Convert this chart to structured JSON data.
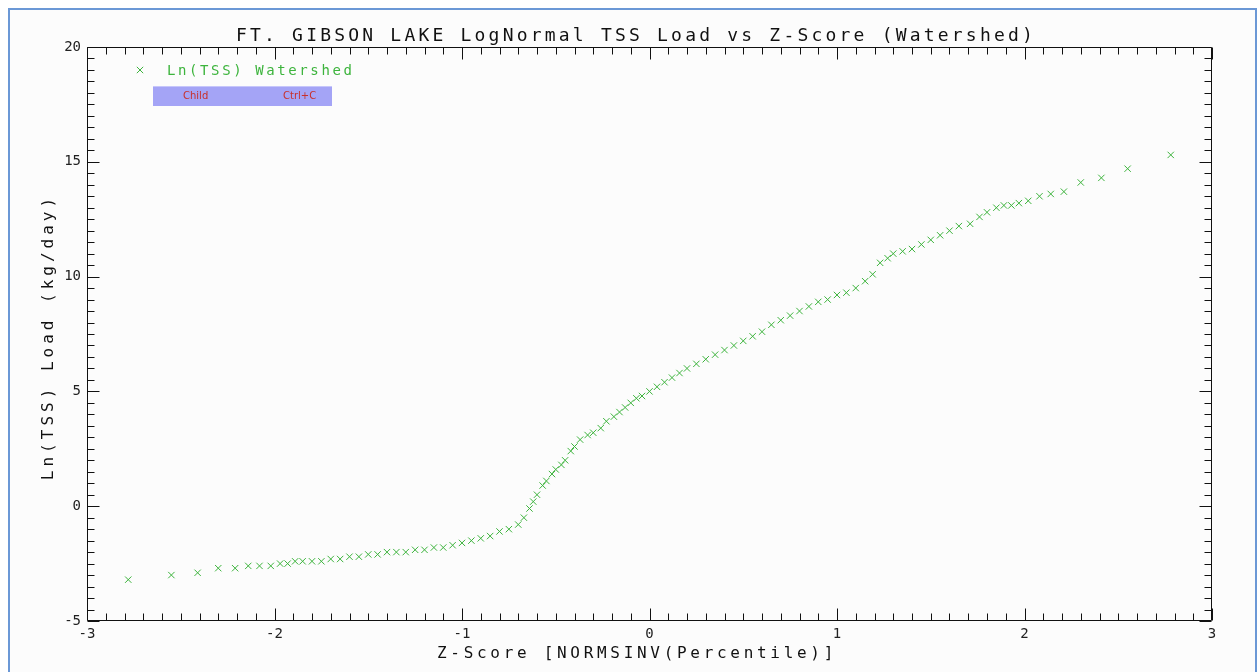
{
  "chart_data": {
    "type": "scatter",
    "title": "FT. GIBSON LAKE LogNormal TSS Load vs Z-Score (Watershed)",
    "xlabel": "Z-Score [NORMSINV(Percentile)]",
    "ylabel": "Ln(TSS) Load (kg/day)",
    "annotations": [
      "Child",
      "Ctrl+C"
    ],
    "x": [
      -2.78,
      -2.55,
      -2.41,
      -2.3,
      -2.21,
      -2.14,
      -2.08,
      -2.02,
      -1.97,
      -1.93,
      -1.89,
      -1.85,
      -1.8,
      -1.75,
      -1.7,
      -1.65,
      -1.6,
      -1.55,
      -1.5,
      -1.45,
      -1.4,
      -1.35,
      -1.3,
      -1.25,
      -1.2,
      -1.15,
      -1.1,
      -1.05,
      -1,
      -0.95,
      -0.9,
      -0.85,
      -0.8,
      -0.75,
      -0.7,
      -0.67,
      -0.64,
      -0.62,
      -0.6,
      -0.57,
      -0.55,
      -0.52,
      -0.5,
      -0.47,
      -0.45,
      -0.42,
      -0.4,
      -0.37,
      -0.33,
      -0.3,
      -0.26,
      -0.23,
      -0.19,
      -0.16,
      -0.13,
      -0.1,
      -0.07,
      -0.04,
      0,
      0.04,
      0.08,
      0.12,
      0.16,
      0.2,
      0.25,
      0.3,
      0.35,
      0.4,
      0.45,
      0.5,
      0.55,
      0.6,
      0.65,
      0.7,
      0.75,
      0.8,
      0.85,
      0.9,
      0.95,
      1,
      1.05,
      1.1,
      1.15,
      1.19,
      1.23,
      1.27,
      1.3,
      1.35,
      1.4,
      1.45,
      1.5,
      1.55,
      1.6,
      1.65,
      1.71,
      1.76,
      1.8,
      1.85,
      1.89,
      1.93,
      1.97,
      2.02,
      2.08,
      2.14,
      2.21,
      2.3,
      2.41,
      2.55,
      2.78
    ],
    "series": [
      {
        "name": "Ln(TSS) Watershed",
        "color": "#3db43d",
        "values": [
          -3.2,
          -3,
          -2.9,
          -2.7,
          -2.7,
          -2.6,
          -2.6,
          -2.6,
          -2.5,
          -2.5,
          -2.4,
          -2.4,
          -2.4,
          -2.4,
          -2.3,
          -2.3,
          -2.2,
          -2.2,
          -2.1,
          -2.1,
          -2,
          -2,
          -2,
          -1.9,
          -1.9,
          -1.8,
          -1.8,
          -1.7,
          -1.6,
          -1.5,
          -1.4,
          -1.3,
          -1.1,
          -1,
          -0.8,
          -0.5,
          -0.1,
          0.2,
          0.5,
          0.9,
          1.1,
          1.4,
          1.6,
          1.8,
          2,
          2.4,
          2.6,
          2.9,
          3.1,
          3.2,
          3.4,
          3.7,
          3.9,
          4.1,
          4.3,
          4.5,
          4.7,
          4.8,
          5,
          5.2,
          5.4,
          5.6,
          5.8,
          6,
          6.2,
          6.4,
          6.6,
          6.8,
          7,
          7.2,
          7.4,
          7.6,
          7.9,
          8.1,
          8.3,
          8.5,
          8.7,
          8.9,
          9,
          9.2,
          9.3,
          9.5,
          9.8,
          10.1,
          10.6,
          10.8,
          11,
          11.1,
          11.2,
          11.4,
          11.6,
          11.8,
          12,
          12.2,
          12.3,
          12.6,
          12.8,
          13,
          13.1,
          13.1,
          13.2,
          13.3,
          13.5,
          13.6,
          13.7,
          14.1,
          14.3,
          14.7,
          15.3
        ]
      }
    ],
    "xlim": [
      -3,
      3
    ],
    "ylim": [
      -5,
      20
    ],
    "xticks": [
      -3,
      {
        "value": -2.9,
        "label": null
      },
      {
        "value": -2.8,
        "label": null
      },
      {
        "value": -2.7,
        "label": null
      },
      {
        "value": -2.6,
        "label": null
      },
      {
        "value": -2.5,
        "label": null
      },
      {
        "value": -2.4,
        "label": null
      },
      {
        "value": -2.3,
        "label": null
      },
      {
        "value": -2.2,
        "label": null
      },
      {
        "value": -2.1,
        "label": null
      },
      -2,
      {
        "value": -1.9,
        "label": null
      },
      {
        "value": -1.8,
        "label": null
      },
      {
        "value": -1.7,
        "label": null
      },
      {
        "value": -1.6,
        "label": null
      },
      {
        "value": -1.5,
        "label": null
      },
      {
        "value": -1.4,
        "label": null
      },
      {
        "value": -1.3,
        "label": null
      },
      {
        "value": -1.2,
        "label": null
      },
      {
        "value": -1.1,
        "label": null
      },
      -1,
      {
        "value": -0.9,
        "label": null
      },
      {
        "value": -0.8,
        "label": null
      },
      {
        "value": -0.7,
        "label": null
      },
      {
        "value": -0.6,
        "label": null
      },
      {
        "value": -0.5,
        "label": null
      },
      {
        "value": -0.4,
        "label": null
      },
      {
        "value": -0.3,
        "label": null
      },
      {
        "value": -0.2,
        "label": null
      },
      {
        "value": -0.1,
        "label": null
      },
      0,
      {
        "value": 0.1,
        "label": null
      },
      {
        "value": 0.2,
        "label": null
      },
      {
        "value": 0.3,
        "label": null
      },
      {
        "value": 0.4,
        "label": null
      },
      {
        "value": 0.5,
        "label": null
      },
      {
        "value": 0.6,
        "label": null
      },
      {
        "value": 0.7,
        "label": null
      },
      {
        "value": 0.8,
        "label": null
      },
      {
        "value": 0.9,
        "label": null
      },
      1,
      {
        "value": 1.1,
        "label": null
      },
      {
        "value": 1.2,
        "label": null
      },
      {
        "value": 1.3,
        "label": null
      },
      {
        "value": 1.4,
        "label": null
      },
      {
        "value": 1.5,
        "label": null
      },
      {
        "value": 1.6,
        "label": null
      },
      {
        "value": 1.7,
        "label": null
      },
      {
        "value": 1.8,
        "label": null
      },
      {
        "value": 1.9,
        "label": null
      },
      2,
      {
        "value": 2.1,
        "label": null
      },
      {
        "value": 2.2,
        "label": null
      },
      {
        "value": 2.3,
        "label": null
      },
      {
        "value": 2.4,
        "label": null
      },
      {
        "value": 2.5,
        "label": null
      },
      {
        "value": 2.6,
        "label": null
      },
      {
        "value": 2.7,
        "label": null
      },
      {
        "value": 2.8,
        "label": null
      },
      {
        "value": 2.9,
        "label": null
      },
      3
    ],
    "yticks": [
      -5,
      {
        "value": -4.5,
        "label": null
      },
      {
        "value": -4,
        "label": null
      },
      {
        "value": -3.5,
        "label": null
      },
      {
        "value": -3,
        "label": null
      },
      {
        "value": -2.5,
        "label": null
      },
      {
        "value": -2,
        "label": null
      },
      {
        "value": -1.5,
        "label": null
      },
      {
        "value": -1,
        "label": null
      },
      {
        "value": -0.5,
        "label": null
      },
      0,
      {
        "value": 0.5,
        "label": null
      },
      {
        "value": 1,
        "label": null
      },
      {
        "value": 1.5,
        "label": null
      },
      {
        "value": 2,
        "label": null
      },
      {
        "value": 2.5,
        "label": null
      },
      {
        "value": 3,
        "label": null
      },
      {
        "value": 3.5,
        "label": null
      },
      {
        "value": 4,
        "label": null
      },
      {
        "value": 4.5,
        "label": null
      },
      5,
      {
        "value": 5.5,
        "label": null
      },
      {
        "value": 6,
        "label": null
      },
      {
        "value": 6.5,
        "label": null
      },
      {
        "value": 7,
        "label": null
      },
      {
        "value": 7.5,
        "label": null
      },
      {
        "value": 8,
        "label": null
      },
      {
        "value": 8.5,
        "label": null
      },
      {
        "value": 9,
        "label": null
      },
      {
        "value": 9.5,
        "label": null
      },
      10,
      {
        "value": 10.5,
        "label": null
      },
      {
        "value": 11,
        "label": null
      },
      {
        "value": 11.5,
        "label": null
      },
      {
        "value": 12,
        "label": null
      },
      {
        "value": 12.5,
        "label": null
      },
      {
        "value": 13,
        "label": null
      },
      {
        "value": 13.5,
        "label": null
      },
      {
        "value": 14,
        "label": null
      },
      {
        "value": 14.5,
        "label": null
      },
      15,
      {
        "value": 15.5,
        "label": null
      },
      {
        "value": 16,
        "label": null
      },
      {
        "value": 16.5,
        "label": null
      },
      {
        "value": 17,
        "label": null
      },
      {
        "value": 17.5,
        "label": null
      },
      {
        "value": 18,
        "label": null
      },
      {
        "value": 18.5,
        "label": null
      },
      {
        "value": 19,
        "label": null
      },
      {
        "value": 19.5,
        "label": null
      },
      20
    ],
    "legend": "top left",
    "marker": "cross"
  }
}
